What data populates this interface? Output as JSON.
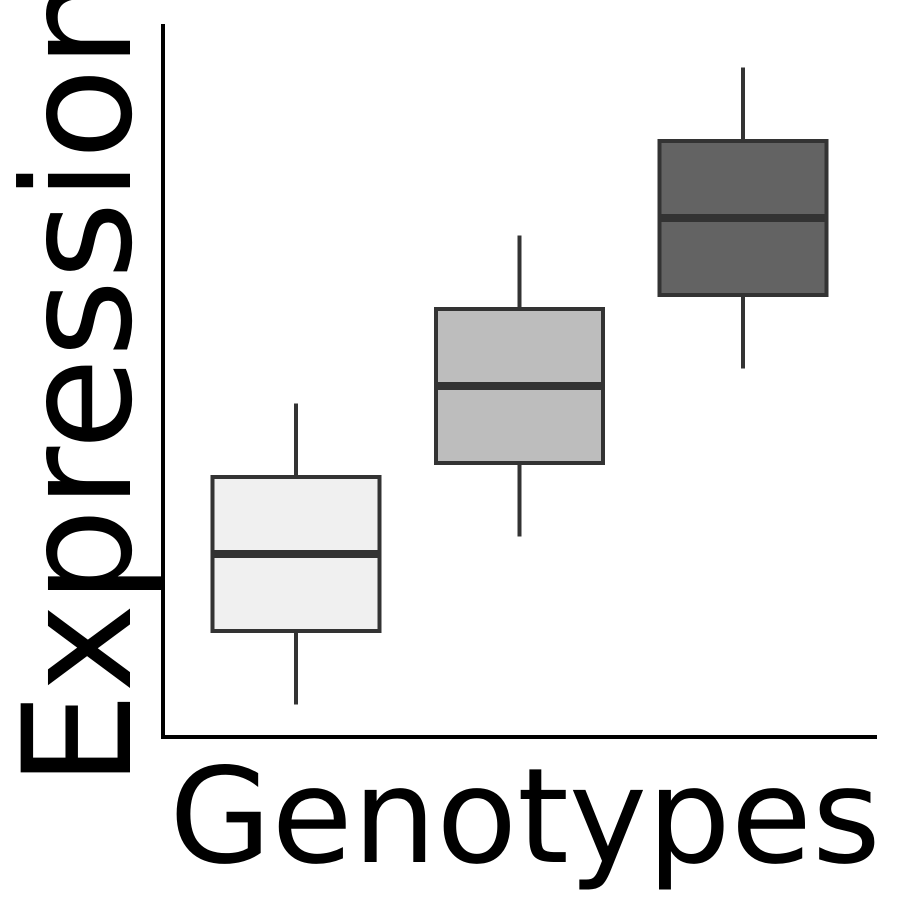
{
  "chart_data": {
    "type": "box",
    "xlabel": "Genotypes",
    "ylabel": "Expression",
    "ylim": [
      0,
      10
    ],
    "grid": false,
    "legend": "none",
    "series": [
      {
        "whisker_low": 0.45,
        "q1": 1.5,
        "median": 2.6,
        "q3": 3.7,
        "whisker_high": 4.75,
        "color": "#f0f0f0"
      },
      {
        "whisker_low": 2.85,
        "q1": 3.9,
        "median": 5.0,
        "q3": 6.1,
        "whisker_high": 7.15,
        "color": "#bdbdbd"
      },
      {
        "whisker_low": 5.25,
        "q1": 6.3,
        "median": 7.4,
        "q3": 8.5,
        "whisker_high": 9.55,
        "color": "#636363"
      }
    ],
    "colors": {
      "axis": "#000000",
      "box_stroke": "#333333"
    }
  }
}
